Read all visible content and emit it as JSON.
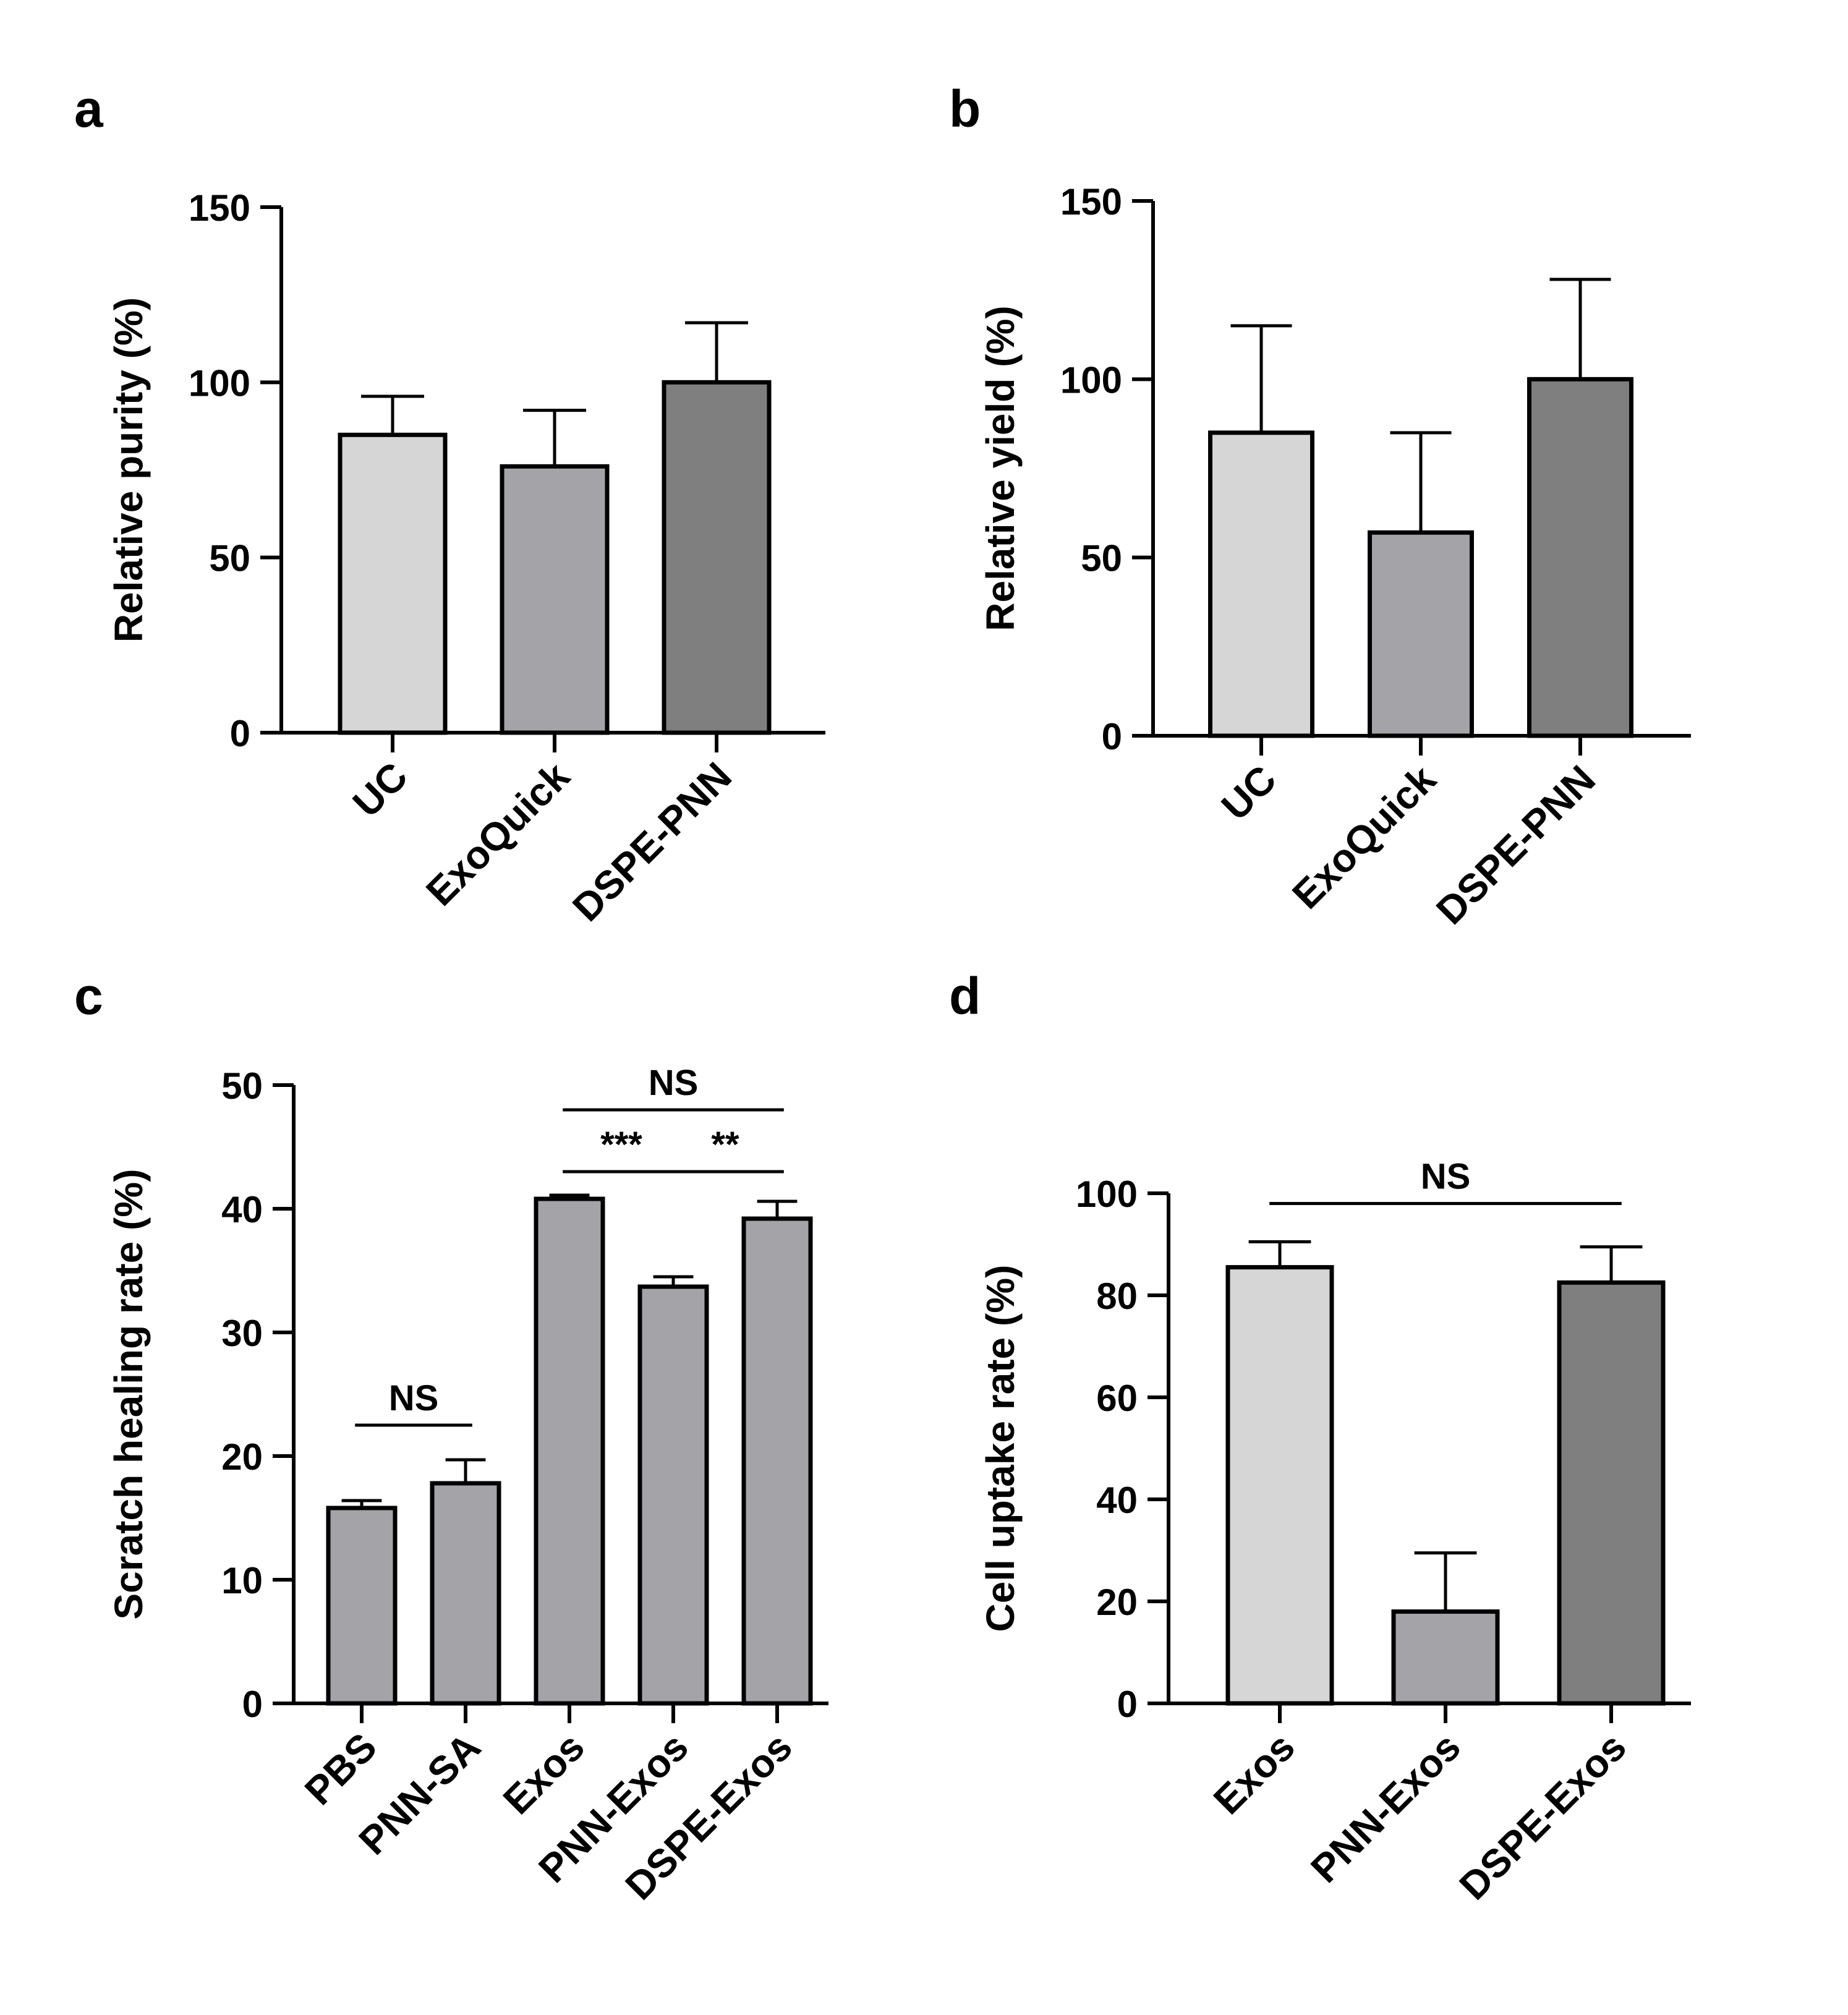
{
  "chart_data": [
    {
      "panel_label": "a",
      "type": "bar",
      "categories": [
        "UC",
        "ExoQuick",
        "DSPE-PNN"
      ],
      "values": [
        85,
        76,
        100
      ],
      "errors": [
        11,
        16,
        17
      ],
      "colors": [
        "#d6d6d6",
        "#a3a3a8",
        "#7f7f7f"
      ],
      "ylabel": "Relative purity (%)",
      "ylim": [
        0,
        150
      ],
      "yticks": [
        0,
        50,
        100,
        150
      ],
      "brackets": []
    },
    {
      "panel_label": "b",
      "type": "bar",
      "categories": [
        "UC",
        "ExoQuick",
        "DSPE-PNN"
      ],
      "values": [
        85,
        57,
        100
      ],
      "errors": [
        30,
        28,
        28
      ],
      "colors": [
        "#d6d6d6",
        "#a3a3a8",
        "#7f7f7f"
      ],
      "ylabel": "Relative yield (%)",
      "ylim": [
        0,
        150
      ],
      "yticks": [
        0,
        50,
        100,
        150
      ],
      "brackets": []
    },
    {
      "panel_label": "c",
      "type": "bar",
      "categories": [
        "PBS",
        "PNN-SA",
        "Exos",
        "PNN-Exos",
        "DSPE-Exos"
      ],
      "values": [
        15.8,
        17.8,
        40.8,
        33.7,
        39.2
      ],
      "errors": [
        0.6,
        1.9,
        0.3,
        0.8,
        1.4
      ],
      "colors": [
        "#a3a3a8",
        "#a3a3a8",
        "#a3a3a8",
        "#a3a3a8",
        "#a3a3a8"
      ],
      "ylabel": "Scratch healing rate (%)",
      "ylim": [
        0,
        50
      ],
      "yticks": [
        0,
        10,
        20,
        30,
        40,
        50
      ],
      "brackets": [
        {
          "from": 0,
          "to": 1,
          "y": 22.5,
          "label": "NS"
        },
        {
          "from": 2,
          "to": 3,
          "y": 43.0,
          "label": "***"
        },
        {
          "from": 3,
          "to": 4,
          "y": 43.0,
          "label": "**"
        },
        {
          "from": 2,
          "to": 4,
          "y": 48.0,
          "label": "NS"
        }
      ]
    },
    {
      "panel_label": "d",
      "type": "bar",
      "categories": [
        "Exos",
        "PNN-Exos",
        "DSPE-Exos"
      ],
      "values": [
        85.5,
        18,
        82.5
      ],
      "errors": [
        5,
        11.5,
        7
      ],
      "colors": [
        "#d6d6d6",
        "#a3a3a8",
        "#7f7f7f"
      ],
      "ylabel": "Cell uptake rate (%)",
      "ylim": [
        0,
        100
      ],
      "yticks": [
        0,
        20,
        40,
        60,
        80,
        100
      ],
      "brackets": [
        {
          "from": 0,
          "to": 2,
          "y": 98,
          "label": "NS"
        }
      ]
    }
  ]
}
